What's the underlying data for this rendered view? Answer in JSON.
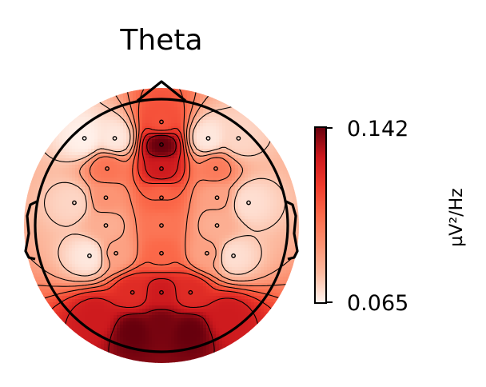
{
  "chart_data": {
    "type": "heatmap",
    "subtype": "eeg-topomap",
    "title": "Theta",
    "colorbar": {
      "min": 0.065,
      "max": 0.142,
      "min_label": "0.065",
      "max_label": "0.142",
      "unit": "µV²/Hz",
      "colormap": "Reds",
      "colors": [
        "#fff5f0",
        "#fcbba1",
        "#fc9272",
        "#fb6a4a",
        "#ef3b2c",
        "#cb181d",
        "#67000d"
      ]
    },
    "electrodes": [
      {
        "x": 0.0,
        "y": 0.82,
        "value": 0.11
      },
      {
        "x": 0.0,
        "y": 0.64,
        "value": 0.142
      },
      {
        "x": 0.0,
        "y": 0.45,
        "value": 0.128
      },
      {
        "x": -0.61,
        "y": 0.69,
        "value": 0.066
      },
      {
        "x": -0.37,
        "y": 0.69,
        "value": 0.068
      },
      {
        "x": 0.37,
        "y": 0.69,
        "value": 0.068
      },
      {
        "x": 0.61,
        "y": 0.69,
        "value": 0.072
      },
      {
        "x": -0.43,
        "y": 0.45,
        "value": 0.1
      },
      {
        "x": 0.43,
        "y": 0.45,
        "value": 0.098
      },
      {
        "x": -0.69,
        "y": 0.18,
        "value": 0.072
      },
      {
        "x": -0.44,
        "y": 0.22,
        "value": 0.09
      },
      {
        "x": 0.0,
        "y": 0.22,
        "value": 0.105
      },
      {
        "x": 0.44,
        "y": 0.22,
        "value": 0.086
      },
      {
        "x": 0.69,
        "y": 0.18,
        "value": 0.07
      },
      {
        "x": -0.44,
        "y": 0.0,
        "value": 0.082
      },
      {
        "x": 0.0,
        "y": 0.0,
        "value": 0.1
      },
      {
        "x": 0.44,
        "y": 0.0,
        "value": 0.082
      },
      {
        "x": -0.57,
        "y": -0.24,
        "value": 0.068
      },
      {
        "x": -0.36,
        "y": -0.22,
        "value": 0.086
      },
      {
        "x": 0.0,
        "y": -0.22,
        "value": 0.104
      },
      {
        "x": 0.36,
        "y": -0.22,
        "value": 0.086
      },
      {
        "x": 0.57,
        "y": -0.24,
        "value": 0.07
      },
      {
        "x": -0.23,
        "y": -0.53,
        "value": 0.122
      },
      {
        "x": 0.0,
        "y": -0.53,
        "value": 0.128
      },
      {
        "x": 0.23,
        "y": -0.53,
        "value": 0.122
      }
    ],
    "extra_sources": [
      {
        "x": -0.22,
        "y": -0.84,
        "value": 0.142
      },
      {
        "x": 0.22,
        "y": -0.84,
        "value": 0.142
      },
      {
        "x": 0.0,
        "y": -0.78,
        "value": 0.14
      },
      {
        "x": -0.52,
        "y": -0.72,
        "value": 0.128
      },
      {
        "x": 0.52,
        "y": -0.72,
        "value": 0.128
      }
    ],
    "contour_levels": [
      0.075,
      0.085,
      0.095,
      0.105,
      0.115,
      0.125,
      0.135
    ]
  }
}
